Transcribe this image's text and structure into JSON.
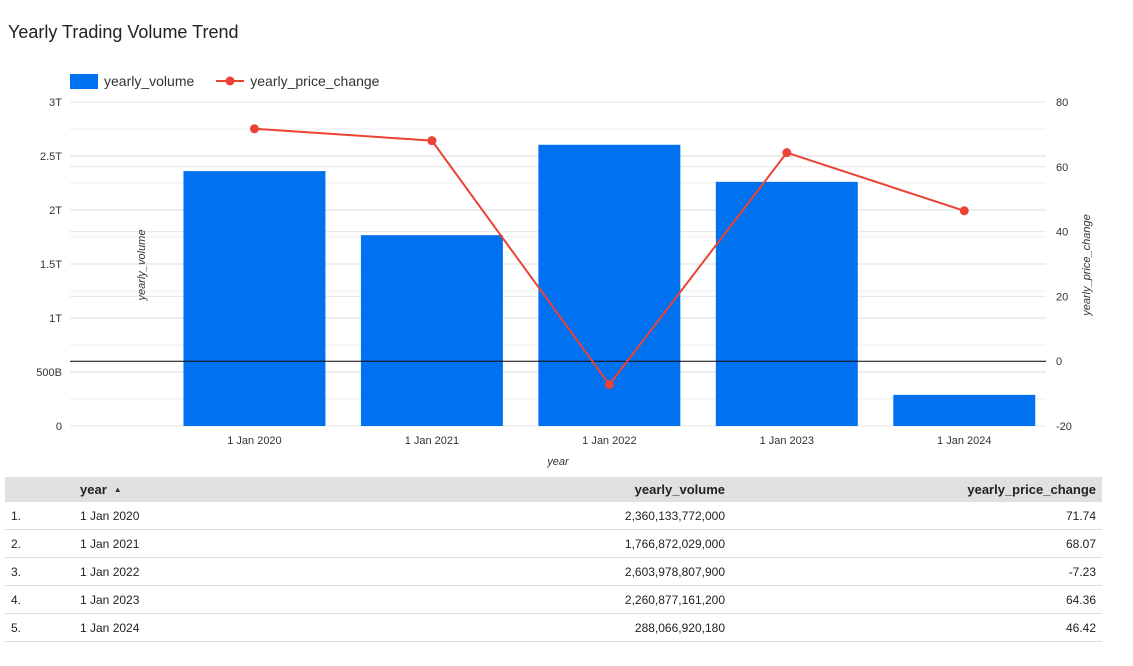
{
  "chart_title": "Yearly Trading Volume Trend",
  "legend": {
    "volume_label": "yearly_volume",
    "price_label": "yearly_price_change"
  },
  "colors": {
    "bar": "#0072f0",
    "line": "#ea4335",
    "grid": "#dddddd",
    "zero_line": "#000000"
  },
  "chart_data": {
    "type": "bar",
    "title": "Yearly Trading Volume Trend",
    "categories": [
      "1 Jan 2020",
      "1 Jan 2021",
      "1 Jan 2022",
      "1 Jan 2023",
      "1 Jan 2024"
    ],
    "xlabel": "year",
    "ylabel": "yearly_volume",
    "y2label": "yearly_price_change",
    "ylim": [
      0,
      3000000000000
    ],
    "y2lim": [
      -20,
      80
    ],
    "y_ticks": [
      {
        "value": 0,
        "label": "0"
      },
      {
        "value": 500000000000,
        "label": "500B"
      },
      {
        "value": 1000000000000,
        "label": "1T"
      },
      {
        "value": 1500000000000,
        "label": "1.5T"
      },
      {
        "value": 2000000000000,
        "label": "2T"
      },
      {
        "value": 2500000000000,
        "label": "2.5T"
      },
      {
        "value": 3000000000000,
        "label": "3T"
      }
    ],
    "y2_ticks": [
      -20,
      0,
      20,
      40,
      60,
      80
    ],
    "legend_position": "top-left",
    "grid": true,
    "series": [
      {
        "name": "yearly_volume",
        "type": "bar",
        "axis": "left",
        "values": [
          2360133772000,
          1766872029000,
          2603978807900,
          2260877161200,
          288066920180
        ]
      },
      {
        "name": "yearly_price_change",
        "type": "line",
        "axis": "right",
        "values": [
          71.74,
          68.07,
          -7.23,
          64.36,
          46.42
        ]
      }
    ]
  },
  "table": {
    "headers": {
      "year": "year",
      "yearly_volume": "yearly_volume",
      "yearly_price_change": "yearly_price_change"
    },
    "sort_indicator": "▲",
    "rows": [
      {
        "index": "1.",
        "year": "1 Jan 2020",
        "yearly_volume": "2,360,133,772,000",
        "yearly_price_change": "71.74"
      },
      {
        "index": "2.",
        "year": "1 Jan 2021",
        "yearly_volume": "1,766,872,029,000",
        "yearly_price_change": "68.07"
      },
      {
        "index": "3.",
        "year": "1 Jan 2022",
        "yearly_volume": "2,603,978,807,900",
        "yearly_price_change": "-7.23"
      },
      {
        "index": "4.",
        "year": "1 Jan 2023",
        "yearly_volume": "2,260,877,161,200",
        "yearly_price_change": "64.36"
      },
      {
        "index": "5.",
        "year": "1 Jan 2024",
        "yearly_volume": "288,066,920,180",
        "yearly_price_change": "46.42"
      }
    ]
  }
}
